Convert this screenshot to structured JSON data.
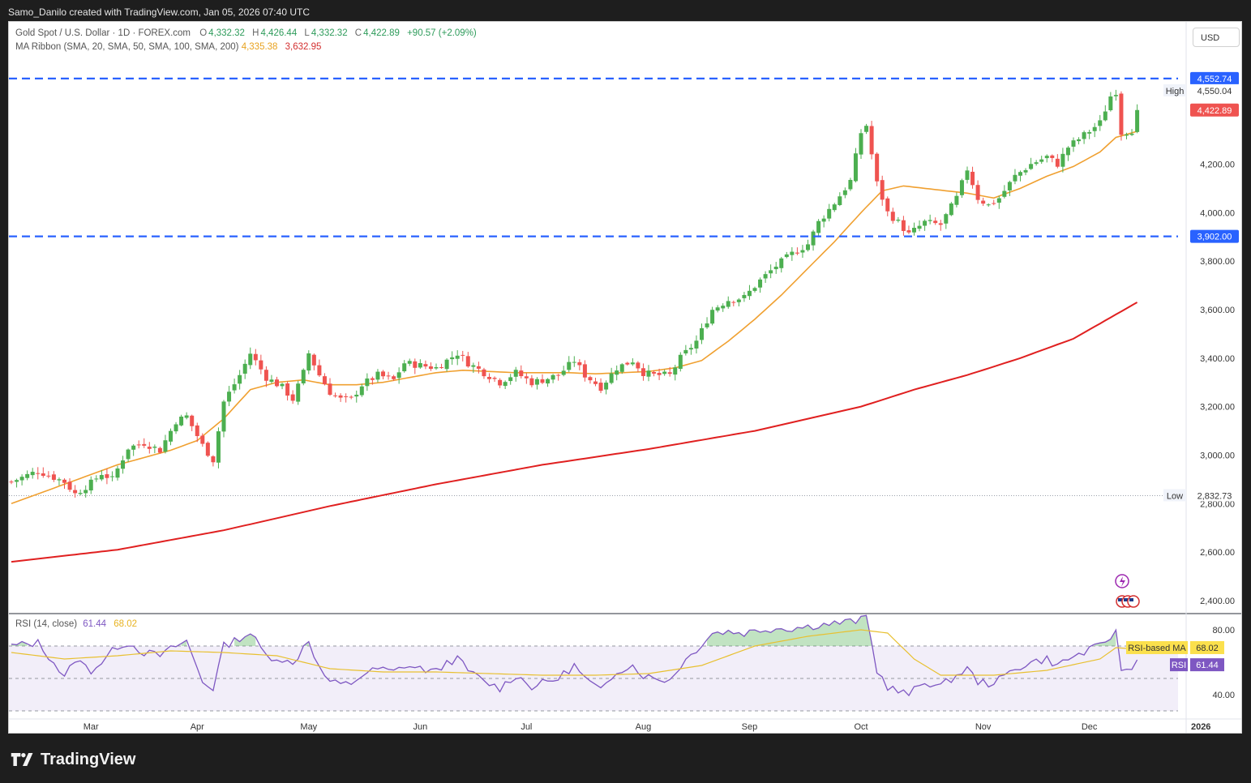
{
  "header": {
    "attribution": "Samo_Danilo created with TradingView.com, Jan 05, 2026 07:40 UTC"
  },
  "legend": {
    "symbol": "Gold Spot / U.S. Dollar · 1D · FOREX.com",
    "open_label": "O",
    "open": "4,332.32",
    "high_label": "H",
    "high": "4,426.44",
    "low_label": "L",
    "low": "4,332.32",
    "close_label": "C",
    "close": "4,422.89",
    "change": "+90.57 (+2.09%)",
    "ma_title": "MA Ribbon (SMA, 20, SMA, 50, SMA, 100, SMA, 200)",
    "ma_val1": "4,335.38",
    "ma_val2": "3,632.95",
    "rsi_title": "RSI (14, close)",
    "rsi_val": "61.44",
    "rsi_ma_val": "68.02"
  },
  "currency_button": "USD",
  "footer": {
    "brand": "TradingView"
  },
  "colors": {
    "up": "#26a69a",
    "up_fill": "#4caf50",
    "down": "#ef5350",
    "sma20": "#f0a030",
    "sma200": "#e02020",
    "level": "#2962ff",
    "rsi": "#7e57c2",
    "rsi_ma": "#e8c030"
  },
  "chart_data": {
    "type": "candlestick",
    "symbol": "Gold Spot / U.S. Dollar",
    "timeframe": "1D",
    "ylim": [
      2350,
      4600
    ],
    "yticks": [
      {
        "v": 2400,
        "label": "2,400.00"
      },
      {
        "v": 2600,
        "label": "2,600.00"
      },
      {
        "v": 2800,
        "label": "2,800.00"
      },
      {
        "v": 3000,
        "label": "3,000.00"
      },
      {
        "v": 3200,
        "label": "3,200.00"
      },
      {
        "v": 3400,
        "label": "3,400.00"
      },
      {
        "v": 3600,
        "label": "3,600.00"
      },
      {
        "v": 3800,
        "label": "3,800.00"
      },
      {
        "v": 4000,
        "label": "4,000.00"
      },
      {
        "v": 4200,
        "label": "4,200.00"
      }
    ],
    "months": [
      {
        "label": "Mar",
        "bar": 15
      },
      {
        "label": "Apr",
        "bar": 35
      },
      {
        "label": "May",
        "bar": 56
      },
      {
        "label": "Jun",
        "bar": 77
      },
      {
        "label": "Jul",
        "bar": 97
      },
      {
        "label": "Aug",
        "bar": 119
      },
      {
        "label": "Sep",
        "bar": 139
      },
      {
        "label": "Oct",
        "bar": 160
      },
      {
        "label": "Nov",
        "bar": 183
      },
      {
        "label": "Dec",
        "bar": 203
      },
      {
        "label": "2026",
        "bar": 224
      }
    ],
    "levels": [
      {
        "value": 4552.74,
        "label": "4,552.74",
        "style": "dashed"
      },
      {
        "value": 3902.0,
        "label": "3,902.00",
        "style": "dashed"
      }
    ],
    "markers": [
      {
        "value": 4550.04,
        "tag": "High",
        "label": "4,550.04"
      },
      {
        "value": 2832.73,
        "tag": "Low",
        "label": "2,832.73"
      }
    ],
    "last_price": {
      "value": 4422.89,
      "label": "4,422.89"
    },
    "anchors": [
      [
        0,
        2890
      ],
      [
        5,
        2935
      ],
      [
        10,
        2890
      ],
      [
        12,
        2840
      ],
      [
        15,
        2885
      ],
      [
        17,
        2925
      ],
      [
        19,
        2900
      ],
      [
        22,
        3030
      ],
      [
        25,
        3050
      ],
      [
        28,
        3020
      ],
      [
        31,
        3140
      ],
      [
        33,
        3160
      ],
      [
        36,
        3040
      ],
      [
        38,
        2980
      ],
      [
        40,
        3220
      ],
      [
        43,
        3330
      ],
      [
        45,
        3420
      ],
      [
        48,
        3320
      ],
      [
        51,
        3280
      ],
      [
        53,
        3230
      ],
      [
        55,
        3340
      ],
      [
        56,
        3420
      ],
      [
        58,
        3330
      ],
      [
        60,
        3260
      ],
      [
        62,
        3230
      ],
      [
        64,
        3230
      ],
      [
        66,
        3290
      ],
      [
        69,
        3330
      ],
      [
        72,
        3310
      ],
      [
        74,
        3380
      ],
      [
        77,
        3370
      ],
      [
        80,
        3360
      ],
      [
        82,
        3390
      ],
      [
        84,
        3420
      ],
      [
        86,
        3380
      ],
      [
        89,
        3340
      ],
      [
        92,
        3300
      ],
      [
        95,
        3340
      ],
      [
        98,
        3300
      ],
      [
        100,
        3310
      ],
      [
        103,
        3330
      ],
      [
        106,
        3390
      ],
      [
        108,
        3330
      ],
      [
        111,
        3280
      ],
      [
        114,
        3360
      ],
      [
        117,
        3390
      ],
      [
        119,
        3340
      ],
      [
        121,
        3330
      ],
      [
        124,
        3330
      ],
      [
        126,
        3400
      ],
      [
        129,
        3470
      ],
      [
        132,
        3600
      ],
      [
        135,
        3640
      ],
      [
        138,
        3650
      ],
      [
        141,
        3720
      ],
      [
        144,
        3780
      ],
      [
        147,
        3830
      ],
      [
        150,
        3870
      ],
      [
        152,
        3960
      ],
      [
        155,
        4040
      ],
      [
        158,
        4130
      ],
      [
        160,
        4330
      ],
      [
        161,
        4360
      ],
      [
        163,
        4120
      ],
      [
        165,
        4000
      ],
      [
        167,
        3960
      ],
      [
        169,
        3910
      ],
      [
        172,
        3960
      ],
      [
        175,
        3950
      ],
      [
        178,
        4060
      ],
      [
        180,
        4180
      ],
      [
        182,
        4060
      ],
      [
        184,
        4030
      ],
      [
        186,
        4060
      ],
      [
        189,
        4150
      ],
      [
        192,
        4200
      ],
      [
        195,
        4230
      ],
      [
        197,
        4200
      ],
      [
        199,
        4270
      ],
      [
        202,
        4320
      ],
      [
        205,
        4370
      ],
      [
        207,
        4480
      ],
      [
        208,
        4500
      ],
      [
        209,
        4330
      ],
      [
        211,
        4340
      ],
      [
        212,
        4423
      ]
    ],
    "sma20_anchors": [
      [
        0,
        2800
      ],
      [
        10,
        2880
      ],
      [
        20,
        2960
      ],
      [
        30,
        3020
      ],
      [
        35,
        3060
      ],
      [
        40,
        3150
      ],
      [
        45,
        3270
      ],
      [
        50,
        3300
      ],
      [
        55,
        3310
      ],
      [
        60,
        3290
      ],
      [
        65,
        3290
      ],
      [
        70,
        3300
      ],
      [
        75,
        3320
      ],
      [
        80,
        3340
      ],
      [
        85,
        3350
      ],
      [
        90,
        3345
      ],
      [
        95,
        3340
      ],
      [
        100,
        3340
      ],
      [
        105,
        3340
      ],
      [
        110,
        3335
      ],
      [
        115,
        3340
      ],
      [
        120,
        3345
      ],
      [
        125,
        3360
      ],
      [
        130,
        3390
      ],
      [
        135,
        3470
      ],
      [
        140,
        3560
      ],
      [
        145,
        3660
      ],
      [
        150,
        3770
      ],
      [
        155,
        3880
      ],
      [
        160,
        4000
      ],
      [
        164,
        4090
      ],
      [
        168,
        4110
      ],
      [
        172,
        4100
      ],
      [
        176,
        4090
      ],
      [
        180,
        4080
      ],
      [
        185,
        4060
      ],
      [
        190,
        4100
      ],
      [
        195,
        4150
      ],
      [
        200,
        4190
      ],
      [
        205,
        4250
      ],
      [
        208,
        4310
      ],
      [
        212,
        4335
      ]
    ],
    "sma200_anchors": [
      [
        0,
        2560
      ],
      [
        20,
        2610
      ],
      [
        40,
        2690
      ],
      [
        60,
        2790
      ],
      [
        80,
        2880
      ],
      [
        100,
        2960
      ],
      [
        120,
        3025
      ],
      [
        140,
        3100
      ],
      [
        160,
        3200
      ],
      [
        170,
        3270
      ],
      [
        180,
        3330
      ],
      [
        190,
        3400
      ],
      [
        200,
        3480
      ],
      [
        212,
        3630
      ]
    ],
    "rsi": {
      "ylim": [
        25,
        90
      ],
      "band_upper": 70,
      "band_mid": 50,
      "band_lower": 30,
      "tick_labels": [
        {
          "v": 80,
          "label": "80.00"
        },
        {
          "v": 40,
          "label": "40.00"
        }
      ],
      "last": {
        "value": 61.44,
        "tag": "RSI",
        "label": "61.44"
      },
      "ma_last": {
        "value": 68.02,
        "tag": "RSI-based MA",
        "label": "68.02"
      },
      "anchors": [
        [
          0,
          70
        ],
        [
          5,
          72
        ],
        [
          8,
          60
        ],
        [
          10,
          50
        ],
        [
          12,
          62
        ],
        [
          15,
          55
        ],
        [
          17,
          60
        ],
        [
          20,
          70
        ],
        [
          22,
          72
        ],
        [
          25,
          66
        ],
        [
          28,
          64
        ],
        [
          31,
          70
        ],
        [
          33,
          73
        ],
        [
          36,
          48
        ],
        [
          38,
          44
        ],
        [
          40,
          70
        ],
        [
          43,
          75
        ],
        [
          45,
          78
        ],
        [
          48,
          64
        ],
        [
          51,
          62
        ],
        [
          53,
          58
        ],
        [
          55,
          70
        ],
        [
          56,
          74
        ],
        [
          58,
          56
        ],
        [
          60,
          48
        ],
        [
          62,
          46
        ],
        [
          64,
          47
        ],
        [
          66,
          52
        ],
        [
          69,
          56
        ],
        [
          72,
          54
        ],
        [
          74,
          58
        ],
        [
          77,
          56
        ],
        [
          80,
          54
        ],
        [
          82,
          60
        ],
        [
          84,
          62
        ],
        [
          86,
          55
        ],
        [
          89,
          48
        ],
        [
          92,
          44
        ],
        [
          95,
          52
        ],
        [
          98,
          45
        ],
        [
          100,
          47
        ],
        [
          103,
          50
        ],
        [
          106,
          58
        ],
        [
          108,
          50
        ],
        [
          111,
          42
        ],
        [
          114,
          55
        ],
        [
          117,
          58
        ],
        [
          119,
          52
        ],
        [
          121,
          50
        ],
        [
          124,
          49
        ],
        [
          126,
          58
        ],
        [
          129,
          68
        ],
        [
          132,
          78
        ],
        [
          135,
          79
        ],
        [
          138,
          78
        ],
        [
          141,
          80
        ],
        [
          144,
          81
        ],
        [
          147,
          81
        ],
        [
          150,
          82
        ],
        [
          152,
          83
        ],
        [
          155,
          84
        ],
        [
          158,
          85
        ],
        [
          160,
          86
        ],
        [
          161,
          88
        ],
        [
          163,
          55
        ],
        [
          165,
          45
        ],
        [
          167,
          42
        ],
        [
          169,
          40
        ],
        [
          172,
          48
        ],
        [
          175,
          45
        ],
        [
          178,
          52
        ],
        [
          180,
          56
        ],
        [
          182,
          48
        ],
        [
          184,
          47
        ],
        [
          186,
          49
        ],
        [
          189,
          56
        ],
        [
          192,
          60
        ],
        [
          195,
          62
        ],
        [
          197,
          58
        ],
        [
          199,
          62
        ],
        [
          202,
          66
        ],
        [
          205,
          70
        ],
        [
          207,
          76
        ],
        [
          208,
          78
        ],
        [
          209,
          56
        ],
        [
          211,
          55
        ],
        [
          212,
          61.44
        ]
      ],
      "ma_anchors": [
        [
          0,
          66
        ],
        [
          10,
          62
        ],
        [
          20,
          64
        ],
        [
          30,
          67
        ],
        [
          40,
          66
        ],
        [
          50,
          64
        ],
        [
          60,
          56
        ],
        [
          70,
          54
        ],
        [
          80,
          54
        ],
        [
          90,
          53
        ],
        [
          100,
          52
        ],
        [
          110,
          52
        ],
        [
          120,
          53
        ],
        [
          130,
          58
        ],
        [
          140,
          70
        ],
        [
          150,
          76
        ],
        [
          160,
          80
        ],
        [
          165,
          78
        ],
        [
          170,
          62
        ],
        [
          175,
          52
        ],
        [
          185,
          52
        ],
        [
          195,
          55
        ],
        [
          205,
          62
        ],
        [
          208,
          69
        ],
        [
          212,
          68.02
        ]
      ]
    }
  }
}
